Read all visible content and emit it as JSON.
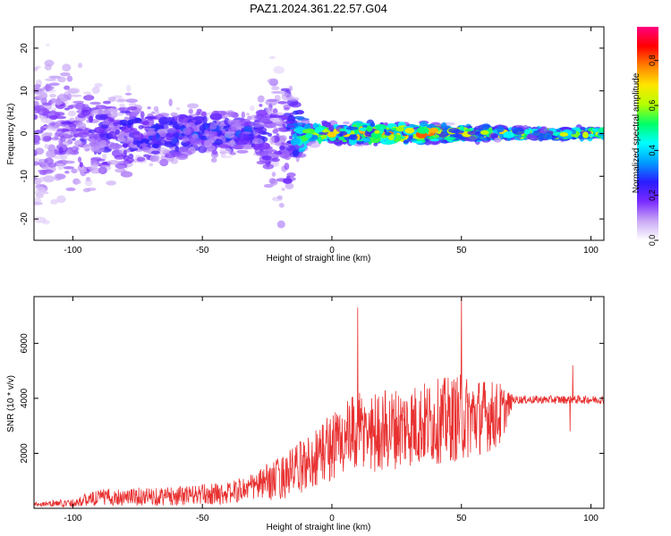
{
  "figure": {
    "title": "PAZ1.2024.361.22.57.G04"
  },
  "chart_data": [
    {
      "type": "heatmap",
      "title": "PAZ1.2024.361.22.57.G04",
      "xlabel": "Height of straight line (km)",
      "ylabel": "Frequency (Hz)",
      "xlim": [
        -115,
        105
      ],
      "ylim": [
        -25,
        25
      ],
      "x_ticks": [
        -100,
        -50,
        0,
        50,
        100
      ],
      "y_ticks": [
        -20,
        -10,
        0,
        10,
        20
      ],
      "grid": false,
      "colorbar": {
        "label": "Normalized spectral amplitude",
        "range": [
          0.0,
          0.95
        ],
        "ticks": [
          "0.0",
          "0.2",
          "0.4",
          "0.6",
          "0.8"
        ],
        "colormap": [
          "#ffffff",
          "#c9a8f5",
          "#7a2bff",
          "#2a1cff",
          "#009cff",
          "#00ffff",
          "#00ff66",
          "#b4ff00",
          "#ffe600",
          "#ff8000",
          "#ff0000",
          "#ff0080"
        ]
      },
      "band_center_hz": 0,
      "signal_profile": [
        {
          "x": -110,
          "amplitude": 0.15,
          "spread_hz": 24
        },
        {
          "x": -90,
          "amplitude": 0.2,
          "spread_hz": 14
        },
        {
          "x": -60,
          "amplitude": 0.25,
          "spread_hz": 8
        },
        {
          "x": -30,
          "amplitude": 0.25,
          "spread_hz": 6
        },
        {
          "x": -20,
          "amplitude": 0.15,
          "spread_hz": 24
        },
        {
          "x": -10,
          "amplitude": 0.5,
          "spread_hz": 3
        },
        {
          "x": 10,
          "amplitude": 0.65,
          "spread_hz": 3
        },
        {
          "x": 40,
          "amplitude": 0.7,
          "spread_hz": 2.5
        },
        {
          "x": 70,
          "amplitude": 0.55,
          "spread_hz": 1.5
        },
        {
          "x": 105,
          "amplitude": 0.55,
          "spread_hz": 1.5
        }
      ]
    },
    {
      "type": "line",
      "xlabel": "Height of straight line (km)",
      "ylabel": "SNR (10 * v/v)",
      "xlim": [
        -115,
        105
      ],
      "ylim": [
        0,
        7700
      ],
      "x_ticks": [
        -100,
        -50,
        0,
        50,
        100
      ],
      "y_ticks": [
        2000,
        4000,
        6000
      ],
      "grid": false,
      "color": "#e83030",
      "envelope": [
        {
          "x": -115,
          "mean": 150,
          "spread": 80
        },
        {
          "x": -100,
          "mean": 200,
          "spread": 150
        },
        {
          "x": -90,
          "mean": 400,
          "spread": 300
        },
        {
          "x": -60,
          "mean": 450,
          "spread": 350
        },
        {
          "x": -40,
          "mean": 550,
          "spread": 400
        },
        {
          "x": -30,
          "mean": 800,
          "spread": 500
        },
        {
          "x": -20,
          "mean": 1100,
          "spread": 800
        },
        {
          "x": -10,
          "mean": 1600,
          "spread": 1000
        },
        {
          "x": 0,
          "mean": 2300,
          "spread": 1300
        },
        {
          "x": 10,
          "mean": 2700,
          "spread": 1500
        },
        {
          "x": 30,
          "mean": 3000,
          "spread": 1500
        },
        {
          "x": 50,
          "mean": 3300,
          "spread": 1600
        },
        {
          "x": 65,
          "mean": 3400,
          "spread": 1200
        },
        {
          "x": 70,
          "mean": 3950,
          "spread": 150
        },
        {
          "x": 105,
          "mean": 3950,
          "spread": 150
        }
      ],
      "spikes": [
        {
          "x": 10,
          "y": 7300
        },
        {
          "x": 50,
          "y": 7700
        },
        {
          "x": 92,
          "y": 2800
        },
        {
          "x": 93,
          "y": 5200
        }
      ]
    }
  ]
}
